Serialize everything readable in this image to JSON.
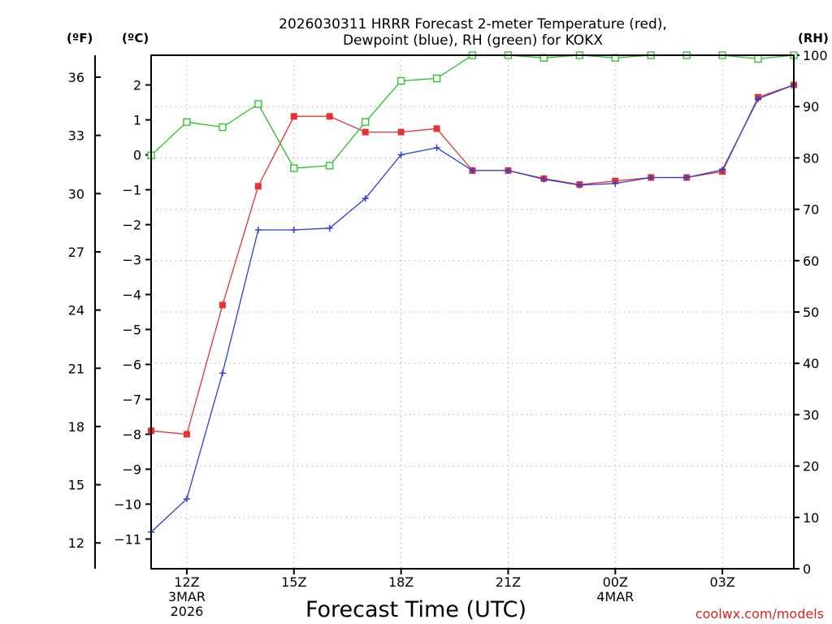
{
  "chart_data": {
    "type": "line",
    "title_line1": "2026030311 HRRR Forecast 2-meter Temperature (red),",
    "title_line2": "Dewpoint (blue), RH (green) for KOKX",
    "xlabel": "Forecast Time (UTC)",
    "watermark": "coolwx.com/models",
    "unit_labels": {
      "fahrenheit": "(ºF)",
      "celsius": "(ºC)",
      "rh": "(RH)"
    },
    "x_hours": [
      11,
      12,
      13,
      14,
      15,
      16,
      17,
      18,
      19,
      20,
      21,
      22,
      23,
      24,
      25,
      26,
      27,
      28,
      29
    ],
    "x_ticks": [
      {
        "hour": 12,
        "lines": [
          "12Z",
          "3MAR",
          "2026"
        ]
      },
      {
        "hour": 15,
        "lines": [
          "15Z"
        ]
      },
      {
        "hour": 18,
        "lines": [
          "18Z"
        ]
      },
      {
        "hour": 21,
        "lines": [
          "21Z"
        ]
      },
      {
        "hour": 24,
        "lines": [
          "00Z",
          "4MAR"
        ]
      },
      {
        "hour": 27,
        "lines": [
          "03Z"
        ]
      }
    ],
    "celsius_ticks": [
      2,
      1,
      0,
      -1,
      -2,
      -3,
      -4,
      -5,
      -6,
      -7,
      -8,
      -9,
      -10,
      -11
    ],
    "fahrenheit_ticks": [
      36,
      33,
      30,
      27,
      24,
      21,
      18,
      15,
      12
    ],
    "rh_ticks": [
      100,
      90,
      80,
      70,
      60,
      50,
      40,
      30,
      20,
      10,
      0
    ],
    "ylim_celsius": [
      -11.85,
      2.85
    ],
    "ylim_rh": [
      0,
      100
    ],
    "series": [
      {
        "name": "Temperature",
        "color": "#e83232",
        "marker": "filled-square",
        "axis": "celsius",
        "values": [
          -7.9,
          -8.0,
          -4.3,
          -0.9,
          1.1,
          1.1,
          0.65,
          0.65,
          0.75,
          -0.45,
          -0.45,
          -0.68,
          -0.85,
          -0.75,
          -0.65,
          -0.65,
          -0.48,
          1.65,
          2.0
        ]
      },
      {
        "name": "Dewpoint",
        "color": "#2a3ed8",
        "marker": "plus",
        "axis": "celsius",
        "values": [
          -10.8,
          -9.85,
          -6.25,
          -2.15,
          -2.15,
          -2.1,
          -1.25,
          0.0,
          0.2,
          -0.45,
          -0.45,
          -0.7,
          -0.87,
          -0.82,
          -0.65,
          -0.65,
          -0.43,
          1.6,
          2.0
        ]
      },
      {
        "name": "RH",
        "color": "#22c422",
        "marker": "open-square",
        "axis": "rh",
        "values": [
          80.5,
          87,
          86,
          90.5,
          78,
          78.5,
          87,
          95,
          95.5,
          100,
          100,
          99.5,
          100,
          99.5,
          100,
          100,
          100,
          99.3,
          100
        ]
      }
    ]
  }
}
